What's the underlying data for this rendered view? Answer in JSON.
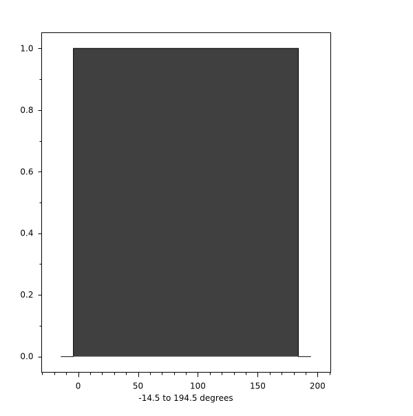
{
  "chart_data": {
    "type": "area",
    "title": "",
    "xlabel": "-14.5 to 194.5 degrees",
    "ylabel": "",
    "xlim": [
      -30.5,
      211
    ],
    "ylim": [
      -0.051,
      1.051
    ],
    "x_ticks": [
      0,
      50,
      100,
      150,
      200
    ],
    "x_tick_labels": [
      "0",
      "50",
      "100",
      "150",
      "200"
    ],
    "x_minor_step": 10,
    "y_ticks": [
      0.0,
      0.2,
      0.4,
      0.6,
      0.8,
      1.0
    ],
    "y_tick_labels": [
      "0.0",
      "0.2",
      "0.4",
      "0.6",
      "0.8",
      "1.0"
    ],
    "y_minor_step": 0.1,
    "grid": false,
    "series": [
      {
        "x": [
          -14.5,
          -4,
          -4,
          184,
          184,
          194.5
        ],
        "y": [
          0,
          0,
          1,
          1,
          0,
          0
        ],
        "fill": "#404040",
        "line": "#000000"
      }
    ]
  }
}
